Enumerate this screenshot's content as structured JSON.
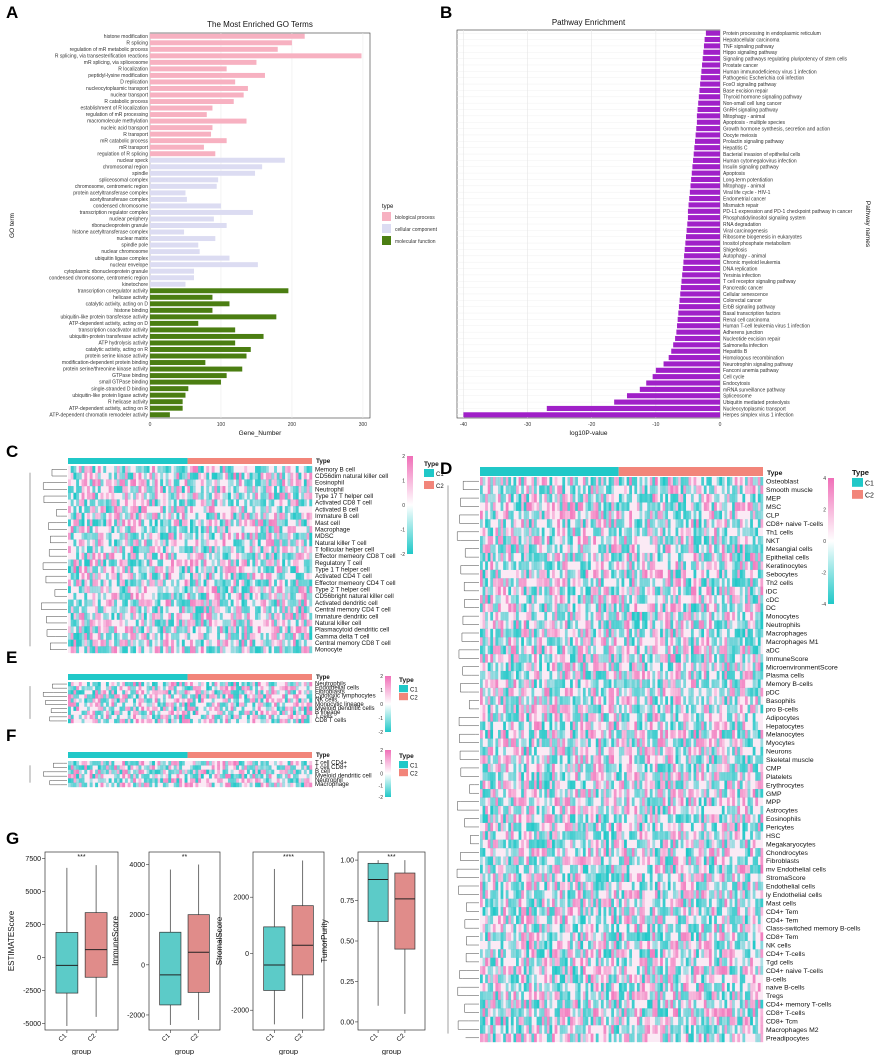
{
  "panels": [
    "A",
    "B",
    "C",
    "D",
    "E",
    "F",
    "G"
  ],
  "colors": {
    "bp": "#f7b1c1",
    "cc": "#dcdcf2",
    "mf": "#4b7e12",
    "purple": "#a020c8",
    "teal": "#20c8c8",
    "salmon": "#f2857a",
    "pink": "#f06fb8",
    "box_c1": "#5ccbc8",
    "box_c2": "#e08c8a"
  },
  "chart_data": [
    {
      "id": "A",
      "type": "bar",
      "orientation": "horizontal",
      "title": "The Most Enriched GO Terms",
      "xlabel": "Gene_Number",
      "ylabel": "GO term",
      "xlim": [
        0,
        310
      ],
      "xticks": [
        0,
        100,
        200,
        300
      ],
      "legend": {
        "title": "type",
        "entries": [
          "biological process",
          "cellular component",
          "molecular function"
        ],
        "placement": "right"
      },
      "categories": [
        "histone modification",
        "R splicing",
        "regulation of mR metabolic process",
        "R splicing, via transesterification reactions",
        "mR splicing, via spliceosome",
        "R localization",
        "peptidyl-lysine modification",
        "D replication",
        "nucleocytoplasmic transport",
        "nuclear transport",
        "R catabolic process",
        "establishment of R localization",
        "regulation of mR processing",
        "macromolecule methylation",
        "nucleic acid transport",
        "R transport",
        "mR catabolic process",
        "mR transport",
        "regulation of R splicing",
        "nuclear speck",
        "chromosomal region",
        "spindle",
        "spliceosomal complex",
        "chromosome, centromeric region",
        "protein acetyltransferase complex",
        "acetyltransferase complex",
        "condensed chromosome",
        "transcription regulator complex",
        "nuclear periphery",
        "ribonucleoprotein granule",
        "histone acetyltransferase complex",
        "nuclear matrix",
        "spindle pole",
        "nuclear chromosome",
        "ubiquitin ligase complex",
        "nuclear envelope",
        "cytoplasmic ribonucleoprotein granule",
        "condensed chromosome, centromeric region",
        "kinetochore",
        "transcription coregulator activity",
        "helicase activity",
        "catalytic activity, acting on D",
        "histone binding",
        "ubiquitin-like protein transferase activity",
        "ATP-dependent activity, acting on D",
        "transcription coactivator activity",
        "ubiquitin-protein transferase activity",
        "ATP hydrolysis activity",
        "catalytic activity, acting on R",
        "protein serine kinase activity",
        "modification-dependent protein binding",
        "protein serine/threonine kinase activity",
        "GTPase binding",
        "small GTPase binding",
        "single-stranded D binding",
        "ubiquitin-like protein ligase activity",
        "R helicase activity",
        "ATP-dependent activity, acting on R",
        "ATP-dependent chromatin remodeler activity"
      ],
      "values": [
        218,
        200,
        180,
        298,
        150,
        108,
        162,
        120,
        138,
        132,
        118,
        88,
        80,
        136,
        88,
        86,
        108,
        76,
        92,
        190,
        158,
        148,
        96,
        94,
        50,
        52,
        100,
        145,
        90,
        108,
        48,
        92,
        68,
        70,
        112,
        152,
        62,
        62,
        50,
        195,
        88,
        112,
        88,
        178,
        68,
        120,
        160,
        120,
        142,
        136,
        78,
        130,
        108,
        100,
        54,
        50,
        46,
        46,
        28
      ],
      "groups": [
        "bp",
        "bp",
        "bp",
        "bp",
        "bp",
        "bp",
        "bp",
        "bp",
        "bp",
        "bp",
        "bp",
        "bp",
        "bp",
        "bp",
        "bp",
        "bp",
        "bp",
        "bp",
        "bp",
        "cc",
        "cc",
        "cc",
        "cc",
        "cc",
        "cc",
        "cc",
        "cc",
        "cc",
        "cc",
        "cc",
        "cc",
        "cc",
        "cc",
        "cc",
        "cc",
        "cc",
        "cc",
        "cc",
        "cc",
        "mf",
        "mf",
        "mf",
        "mf",
        "mf",
        "mf",
        "mf",
        "mf",
        "mf",
        "mf",
        "mf",
        "mf",
        "mf",
        "mf",
        "mf",
        "mf",
        "mf",
        "mf",
        "mf",
        "mf"
      ]
    },
    {
      "id": "B",
      "type": "bar",
      "orientation": "horizontal",
      "title": "Pathway Enrichment",
      "xlabel": "log10P-value",
      "ylabel": "Pathway names",
      "xlim": [
        -41,
        0
      ],
      "xticks": [
        -40,
        -30,
        -20,
        -10,
        0
      ],
      "categories": [
        "Protein processing in endoplasmic reticulum",
        "Hepatocellular carcinoma",
        "TNF signaling pathway",
        "Hippo signaling pathway",
        "Signaling pathways regulating pluripotency of stem cells",
        "Prostate cancer",
        "Human immunodeficiency virus 1 infection",
        "Pathogenic Escherichia coli infection",
        "FoxO signaling pathway",
        "Base excision repair",
        "Thyroid hormone signaling pathway",
        "Non-small cell lung cancer",
        "GnRH signaling pathway",
        "Mitophagy - animal",
        "Apoptosis - multiple species",
        "Growth hormone synthesis, secretion and action",
        "Oocyte meiosis",
        "Prolactin signaling pathway",
        "Hepatitis C",
        "Bacterial invasion of epithelial cells",
        "Human cytomegalovirus infection",
        "Insulin signaling pathway",
        "Apoptosis",
        "Long-term potentiation",
        "Mitophagy - animal",
        "Viral life cycle - HIV-1",
        "Endometrial cancer",
        "Mismatch repair",
        "PD-L1 expression and PD-1 checkpoint pathway in cancer",
        "Phosphatidylinositol signaling system",
        "RNA degradation",
        "Viral carcinogenesis",
        "Ribosome biogenesis in eukaryotes",
        "Inositol phosphate metabolism",
        "Shigellosis",
        "Autophagy - animal",
        "Chronic myeloid leukemia",
        "DNA replication",
        "Yersinia infection",
        "T cell receptor signaling pathway",
        "Pancreatic cancer",
        "Cellular senescence",
        "Colorectal cancer",
        "ErbB signaling pathway",
        "Basal transcription factors",
        "Renal cell carcinoma",
        "Human T-cell leukemia virus 1 infection",
        "Adherens junction",
        "Nucleotide excision repair",
        "Salmonella infection",
        "Hepatitis B",
        "Homologous recombination",
        "Neurotrophin signaling pathway",
        "Fanconi anemia pathway",
        "Cell cycle",
        "Endocytosis",
        "mRNA surveillance pathway",
        "Spliceosome",
        "Ubiquitin mediated proteolysis",
        "Nucleocytoplasmic transport",
        "Herpes simplex virus 1 infection"
      ],
      "values": [
        -2.2,
        -2.4,
        -2.5,
        -2.6,
        -2.7,
        -2.8,
        -2.9,
        -3.0,
        -3.1,
        -3.2,
        -3.3,
        -3.4,
        -3.5,
        -3.6,
        -3.6,
        -3.7,
        -3.8,
        -3.9,
        -4.0,
        -4.1,
        -4.2,
        -4.3,
        -4.4,
        -4.5,
        -4.6,
        -4.7,
        -4.8,
        -4.9,
        -5.0,
        -5.0,
        -5.1,
        -5.2,
        -5.3,
        -5.4,
        -5.5,
        -5.6,
        -5.7,
        -5.8,
        -5.9,
        -6.0,
        -6.1,
        -6.2,
        -6.3,
        -6.4,
        -6.5,
        -6.6,
        -6.7,
        -6.8,
        -7.0,
        -7.3,
        -7.6,
        -8.0,
        -8.8,
        -10.0,
        -10.5,
        -11.5,
        -12.5,
        -14.5,
        -16.5,
        -27.0,
        -40.0
      ]
    },
    {
      "id": "C",
      "type": "heatmap",
      "legend_title": "Type",
      "groups": [
        "C1",
        "C2"
      ],
      "scale_ticks": [
        "2",
        "1",
        "0",
        "-1",
        "-2"
      ],
      "rows": [
        "Memory B cell",
        "CD56dim natural killer cell",
        "Eosinophil",
        "Neutrophil",
        "Type 17 T helper cell",
        "Activated CD8 T cell",
        "Activated B cell",
        "Immature  B cell",
        "Mast cell",
        "Macrophage",
        "MDSC",
        "Natural killer T cell",
        "T follicular helper cell",
        "Effector memeory CD8 T cell",
        "Regulatory T cell",
        "Type 1 T helper cell",
        "Activated CD4 T cell",
        "Effector memeory CD4 T cell",
        "Type 2 T helper cell",
        "CD56bright natural killer cell",
        "Activated dendritic cell",
        "Central memory CD4 T cell",
        "Immature dendritic cell",
        "Natural killer cell",
        "Plasmacytoid dendritic cell",
        "Gamma delta T cell",
        "Central memory CD8 T cell",
        "Monocyte"
      ]
    },
    {
      "id": "D",
      "type": "heatmap",
      "legend_title": "Type",
      "groups": [
        "C1",
        "C2"
      ],
      "scale_ticks": [
        "4",
        "2",
        "0",
        "-2",
        "-4"
      ],
      "rows": [
        "Osteoblast",
        "Smooth muscle",
        "MEP",
        "MSC",
        "CLP",
        "CD8+ naive T-cells",
        "Th1 cells",
        "NKT",
        "Mesangial cells",
        "Epithelial cells",
        "Keratinocytes",
        "Sebocytes",
        "Th2 cells",
        "iDC",
        "cDC",
        "DC",
        "Monocytes",
        "Neutrophils",
        "Macrophages",
        "Macrophages M1",
        "aDC",
        "ImmuneScore",
        "MicroenvironmentScore",
        "Plasma cells",
        "Memory B-cells",
        "pDC",
        "Basophils",
        "pro B-cells",
        "Adipocytes",
        "Hepatocytes",
        "Melanocytes",
        "Myocytes",
        "Neurons",
        "Skeletal muscle",
        "CMP",
        "Platelets",
        "Erythrocytes",
        "GMP",
        "MPP",
        "Astrocytes",
        "Eosinophils",
        "Pericytes",
        "HSC",
        "Megakaryocytes",
        "Chondrocytes",
        "Fibroblasts",
        "mv Endothelial cells",
        "StromaScore",
        "Endothelial cells",
        "ly Endothelial cells",
        "Mast cells",
        "CD4+ Tem",
        "CD4+ Tem",
        "Class-switched memory B-cells",
        "CD8+ Tem",
        "NK cells",
        "CD4+ T-cells",
        "Tgd cells",
        "CD4+ naive T-cells",
        "B-cells",
        "naive B-cells",
        "Tregs",
        "CD4+ memory T-cells",
        "CD8+ T-cells",
        "CD8+ Tcm",
        "Macrophages M2",
        "Preadipocytes"
      ]
    },
    {
      "id": "E",
      "type": "heatmap",
      "legend_title": "Type",
      "groups": [
        "C1",
        "C2"
      ],
      "scale_ticks": [
        "2",
        "1",
        "0",
        "-1",
        "-2"
      ],
      "rows": [
        "Neutrophils",
        "Endothelial cells",
        "Fibroblasts",
        "Cytotoxic lymphocytes",
        "NK cells",
        "Monocytic lineage",
        "Myeloid dendritic cells",
        "B lineage",
        "T cells",
        "CD8 T cells"
      ]
    },
    {
      "id": "F",
      "type": "heatmap",
      "legend_title": "Type",
      "groups": [
        "C1",
        "C2"
      ],
      "scale_ticks": [
        "2",
        "1",
        "0",
        "-1",
        "-2"
      ],
      "rows": [
        "T cell CD4+",
        "T cell CD8+",
        "B cell",
        "Myeloid dendritic cell",
        "Neutrophil",
        "Macrophage"
      ]
    },
    {
      "id": "G",
      "type": "box",
      "xlabel": "group",
      "categories": [
        "C1",
        "C2"
      ],
      "plots": [
        {
          "ylabel": "ESTIMATEScore",
          "sig": "***",
          "yticks": [
            -5000,
            -2500,
            0,
            2500,
            5000,
            7500
          ],
          "ylim": [
            -5500,
            8000
          ],
          "boxes": [
            {
              "min": -5200,
              "q1": -2700,
              "median": -600,
              "q3": 1900,
              "max": 6800
            },
            {
              "min": -4500,
              "q1": -1500,
              "median": 600,
              "q3": 3400,
              "max": 7000
            }
          ]
        },
        {
          "ylabel": "ImmuneScore",
          "sig": "**",
          "yticks": [
            -2000,
            0,
            2000,
            4000
          ],
          "ylim": [
            -2600,
            4500
          ],
          "boxes": [
            {
              "min": -2400,
              "q1": -1600,
              "median": -400,
              "q3": 1300,
              "max": 3800
            },
            {
              "min": -2200,
              "q1": -1100,
              "median": 500,
              "q3": 2000,
              "max": 4000
            }
          ]
        },
        {
          "ylabel": "StromalScore",
          "sig": "****",
          "yticks": [
            -2000,
            0,
            2000
          ],
          "ylim": [
            -2700,
            3600
          ],
          "boxes": [
            {
              "min": -2500,
              "q1": -1300,
              "median": -400,
              "q3": 950,
              "max": 3000
            },
            {
              "min": -2300,
              "q1": -750,
              "median": 300,
              "q3": 1700,
              "max": 3300
            }
          ]
        },
        {
          "ylabel": "TumorPurity",
          "sig": "***",
          "yticks": [
            "0.00",
            "0.25",
            "0.50",
            "0.75",
            "1.00"
          ],
          "ylim": [
            -0.05,
            1.05
          ],
          "boxes": [
            {
              "min": 0.1,
              "q1": 0.62,
              "median": 0.88,
              "q3": 0.98,
              "max": 1.0
            },
            {
              "min": 0.05,
              "q1": 0.45,
              "median": 0.76,
              "q3": 0.92,
              "max": 1.0
            }
          ]
        }
      ]
    }
  ]
}
